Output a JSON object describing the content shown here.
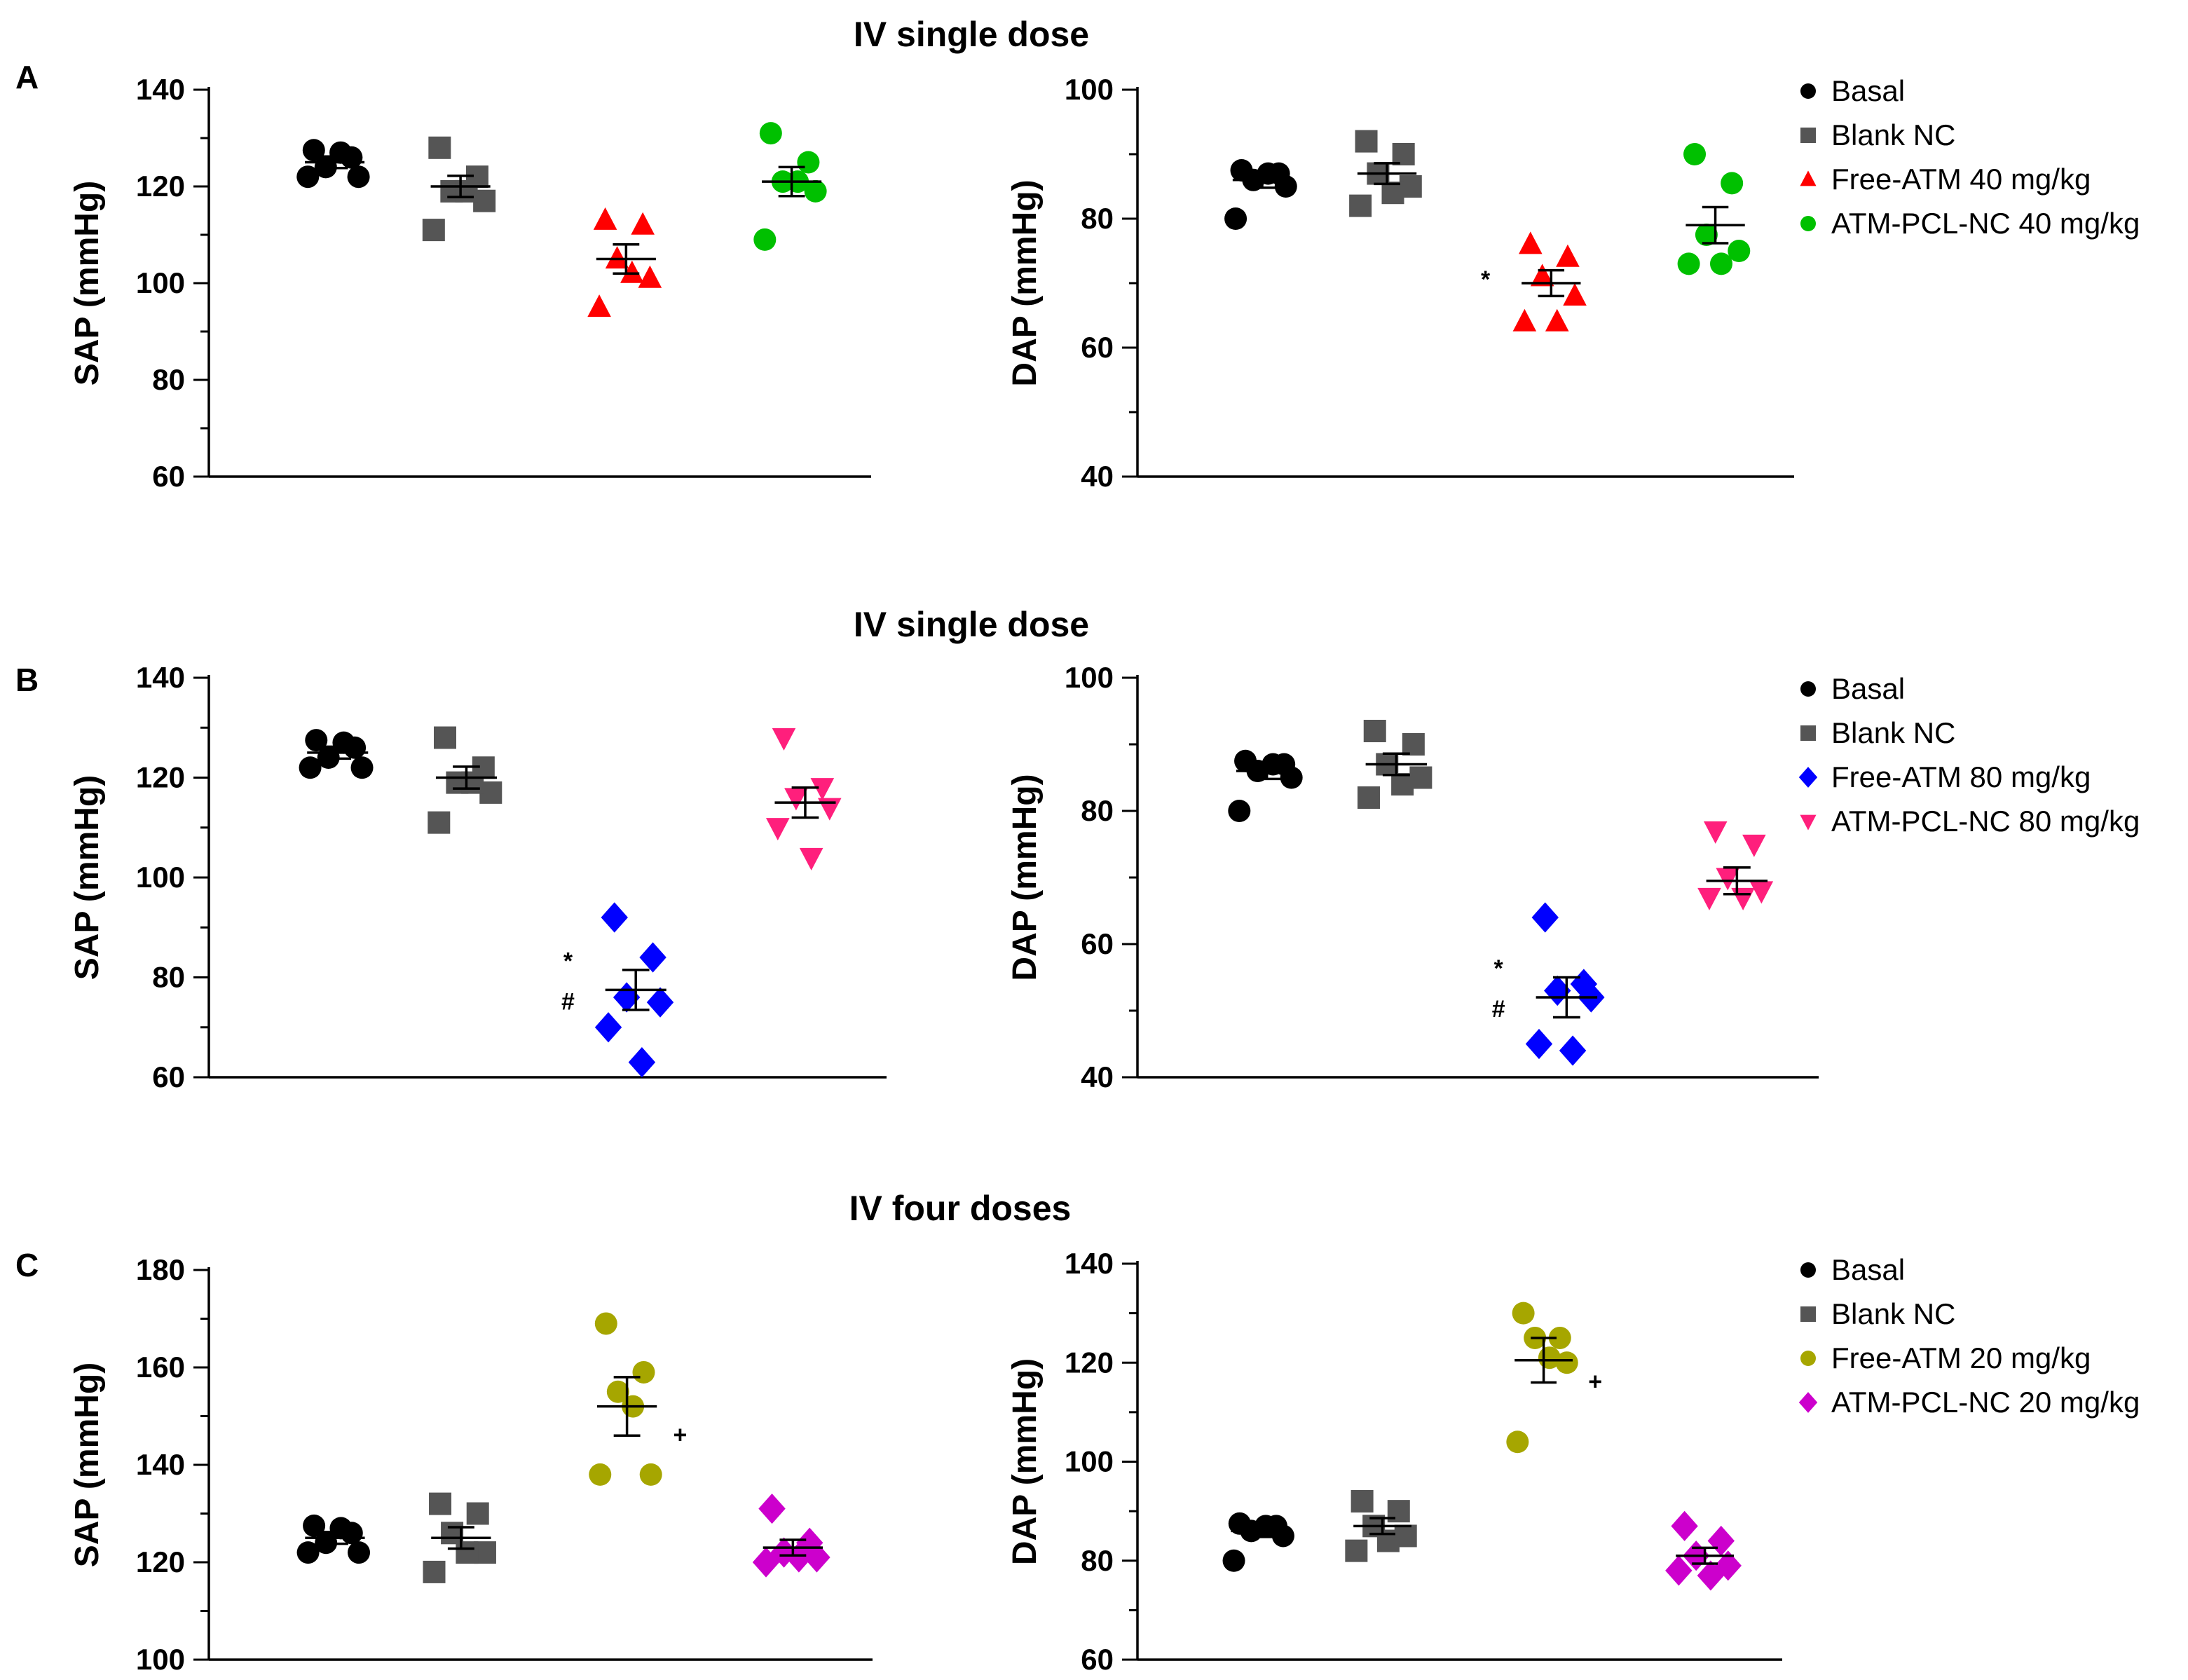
{
  "chart_data": [
    {
      "type": "scatter",
      "panel": "A",
      "title": "IV single dose",
      "ylabel": "SAP (mmHg)",
      "ylim": [
        60,
        140
      ],
      "yticks": [
        60,
        80,
        100,
        120,
        140
      ],
      "series": [
        {
          "name": "Basal",
          "marker": "circle",
          "color": "#000000",
          "values": [
            127.5,
            126,
            124,
            122,
            122,
            127
          ],
          "mean": 125,
          "sem": 1.2
        },
        {
          "name": "Blank NC",
          "marker": "square",
          "color": "#555555",
          "values": [
            128,
            122,
            119,
            117,
            111,
            119
          ],
          "mean": 120,
          "sem": 2.2
        },
        {
          "name": "Free-ATM 40 mg/kg",
          "marker": "triangle",
          "color": "#ff0000",
          "values": [
            113,
            112,
            105,
            101,
            95,
            102
          ],
          "mean": 105,
          "sem": 3
        },
        {
          "name": "ATM-PCL-NC 40 mg/kg",
          "marker": "circle",
          "color": "#00c000",
          "values": [
            131,
            125,
            121,
            119,
            109,
            121
          ],
          "mean": 121,
          "sem": 3
        }
      ],
      "annotations": []
    },
    {
      "type": "scatter",
      "panel": "A",
      "ylabel": "DAP (mmHg)",
      "ylim": [
        40,
        100
      ],
      "yticks": [
        40,
        60,
        80,
        100
      ],
      "series": [
        {
          "name": "Basal",
          "marker": "circle",
          "color": "#000000",
          "values": [
            87.5,
            87,
            86,
            85,
            80,
            87
          ],
          "mean": 86,
          "sem": 1.2
        },
        {
          "name": "Blank NC",
          "marker": "square",
          "color": "#555555",
          "values": [
            92,
            90,
            87,
            85,
            82,
            84
          ],
          "mean": 87,
          "sem": 1.6
        },
        {
          "name": "Free-ATM 40 mg/kg",
          "marker": "triangle",
          "color": "#ff0000",
          "values": [
            76,
            74,
            71,
            68,
            64,
            64
          ],
          "mean": 70,
          "sem": 2
        },
        {
          "name": "ATM-PCL-NC 40 mg/kg",
          "marker": "circle",
          "color": "#00c000",
          "values": [
            90,
            85.5,
            77.5,
            75,
            73,
            73
          ],
          "mean": 79,
          "sem": 2.8
        }
      ],
      "annotations": [
        {
          "text": "*",
          "group": 3
        }
      ]
    },
    {
      "type": "scatter",
      "panel": "B",
      "title": "IV single dose",
      "ylabel": "SAP (mmHg)",
      "ylim": [
        60,
        140
      ],
      "yticks": [
        60,
        80,
        100,
        120,
        140
      ],
      "series": [
        {
          "name": "Basal",
          "marker": "circle",
          "color": "#000000",
          "values": [
            127.5,
            126,
            124,
            122,
            122,
            127
          ],
          "mean": 125,
          "sem": 1.2
        },
        {
          "name": "Blank NC",
          "marker": "square",
          "color": "#555555",
          "values": [
            128,
            122,
            119,
            117,
            111,
            119
          ],
          "mean": 120,
          "sem": 2.2
        },
        {
          "name": "Free-ATM 80 mg/kg",
          "marker": "diamond",
          "color": "#0000ff",
          "values": [
            92,
            84,
            76,
            75,
            70,
            63
          ],
          "mean": 77.5,
          "sem": 4
        },
        {
          "name": "ATM-PCL-NC 80 mg/kg",
          "marker": "triangle-down",
          "color": "#ff1f7c",
          "values": [
            128,
            118,
            116,
            114,
            110,
            104
          ],
          "mean": 115,
          "sem": 3
        }
      ],
      "annotations": [
        {
          "text": "*",
          "group": 3
        },
        {
          "text": "#",
          "group": 3
        }
      ]
    },
    {
      "type": "scatter",
      "panel": "B",
      "ylabel": "DAP (mmHg)",
      "ylim": [
        40,
        100
      ],
      "yticks": [
        40,
        60,
        80,
        100
      ],
      "series": [
        {
          "name": "Basal",
          "marker": "circle",
          "color": "#000000",
          "values": [
            87.5,
            87,
            86,
            85,
            80,
            87
          ],
          "mean": 86,
          "sem": 1.2
        },
        {
          "name": "Blank NC",
          "marker": "square",
          "color": "#555555",
          "values": [
            92,
            90,
            87,
            85,
            82,
            84
          ],
          "mean": 87,
          "sem": 1.6
        },
        {
          "name": "Free-ATM 80 mg/kg",
          "marker": "diamond",
          "color": "#0000ff",
          "values": [
            64,
            54,
            53,
            52,
            45,
            44
          ],
          "mean": 52,
          "sem": 3
        },
        {
          "name": "ATM-PCL-NC 80 mg/kg",
          "marker": "triangle-down",
          "color": "#ff1f7c",
          "values": [
            77,
            75,
            70,
            68,
            67,
            67
          ],
          "mean": 69.5,
          "sem": 2
        }
      ],
      "annotations": [
        {
          "text": "*",
          "group": 3
        },
        {
          "text": "#",
          "group": 3
        }
      ]
    },
    {
      "type": "scatter",
      "panel": "C",
      "title": "IV four doses",
      "ylabel": "SAP (mmHg)",
      "ylim": [
        100,
        180
      ],
      "yticks": [
        100,
        120,
        140,
        160,
        180
      ],
      "series": [
        {
          "name": "Basal",
          "marker": "circle",
          "color": "#000000",
          "values": [
            127.5,
            126,
            124,
            122,
            122,
            127
          ],
          "mean": 125,
          "sem": 1.2
        },
        {
          "name": "Blank NC",
          "marker": "square",
          "color": "#555555",
          "values": [
            132,
            130,
            126,
            122,
            118,
            122
          ],
          "mean": 125,
          "sem": 2.2
        },
        {
          "name": "Free-ATM 20 mg/kg",
          "marker": "circle",
          "color": "#a6a600",
          "values": [
            169,
            159,
            155,
            138,
            138,
            152
          ],
          "mean": 152,
          "sem": 6
        },
        {
          "name": "ATM-PCL-NC 20 mg/kg",
          "marker": "diamond",
          "color": "#cc00cc",
          "values": [
            131,
            124,
            122,
            121,
            120,
            121
          ],
          "mean": 123,
          "sem": 1.6
        }
      ],
      "annotations": [
        {
          "text": "+",
          "group": 3
        }
      ]
    },
    {
      "type": "scatter",
      "panel": "C",
      "ylabel": "DAP (mmHg)",
      "ylim": [
        60,
        140
      ],
      "yticks": [
        60,
        80,
        100,
        120,
        140
      ],
      "series": [
        {
          "name": "Basal",
          "marker": "circle",
          "color": "#000000",
          "values": [
            87.5,
            87,
            86,
            85,
            80,
            87
          ],
          "mean": 86,
          "sem": 1.2
        },
        {
          "name": "Blank NC",
          "marker": "square",
          "color": "#555555",
          "values": [
            92,
            90,
            87,
            85,
            82,
            84
          ],
          "mean": 87,
          "sem": 1.6
        },
        {
          "name": "Free-ATM 20 mg/kg",
          "marker": "circle",
          "color": "#a6a600",
          "values": [
            130,
            125,
            125,
            120,
            104,
            121
          ],
          "mean": 120.5,
          "sem": 4.5
        },
        {
          "name": "ATM-PCL-NC 20 mg/kg",
          "marker": "diamond",
          "color": "#cc00cc",
          "values": [
            87,
            84,
            81,
            79,
            78,
            77
          ],
          "mean": 81,
          "sem": 1.6
        }
      ],
      "annotations": [
        {
          "text": "+",
          "group": 3
        }
      ]
    }
  ]
}
